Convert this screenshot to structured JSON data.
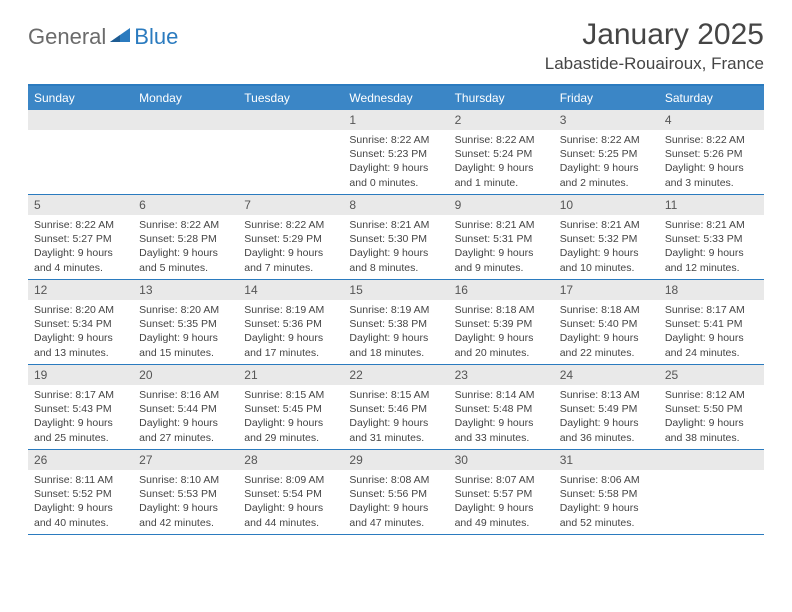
{
  "logo": {
    "general": "General",
    "blue": "Blue"
  },
  "title": "January 2025",
  "location": "Labastide-Rouairoux, France",
  "colors": {
    "header_bar": "#3b86c6",
    "border": "#2b7bbf",
    "daynum_bg": "#e9e9e9",
    "text": "#444444",
    "title_text": "#454545"
  },
  "weekdays": [
    "Sunday",
    "Monday",
    "Tuesday",
    "Wednesday",
    "Thursday",
    "Friday",
    "Saturday"
  ],
  "weeks": [
    [
      null,
      null,
      null,
      {
        "n": "1",
        "sr": "8:22 AM",
        "ss": "5:23 PM",
        "dl": "9 hours",
        "dl2": "and 0 minutes."
      },
      {
        "n": "2",
        "sr": "8:22 AM",
        "ss": "5:24 PM",
        "dl": "9 hours",
        "dl2": "and 1 minute."
      },
      {
        "n": "3",
        "sr": "8:22 AM",
        "ss": "5:25 PM",
        "dl": "9 hours",
        "dl2": "and 2 minutes."
      },
      {
        "n": "4",
        "sr": "8:22 AM",
        "ss": "5:26 PM",
        "dl": "9 hours",
        "dl2": "and 3 minutes."
      }
    ],
    [
      {
        "n": "5",
        "sr": "8:22 AM",
        "ss": "5:27 PM",
        "dl": "9 hours",
        "dl2": "and 4 minutes."
      },
      {
        "n": "6",
        "sr": "8:22 AM",
        "ss": "5:28 PM",
        "dl": "9 hours",
        "dl2": "and 5 minutes."
      },
      {
        "n": "7",
        "sr": "8:22 AM",
        "ss": "5:29 PM",
        "dl": "9 hours",
        "dl2": "and 7 minutes."
      },
      {
        "n": "8",
        "sr": "8:21 AM",
        "ss": "5:30 PM",
        "dl": "9 hours",
        "dl2": "and 8 minutes."
      },
      {
        "n": "9",
        "sr": "8:21 AM",
        "ss": "5:31 PM",
        "dl": "9 hours",
        "dl2": "and 9 minutes."
      },
      {
        "n": "10",
        "sr": "8:21 AM",
        "ss": "5:32 PM",
        "dl": "9 hours",
        "dl2": "and 10 minutes."
      },
      {
        "n": "11",
        "sr": "8:21 AM",
        "ss": "5:33 PM",
        "dl": "9 hours",
        "dl2": "and 12 minutes."
      }
    ],
    [
      {
        "n": "12",
        "sr": "8:20 AM",
        "ss": "5:34 PM",
        "dl": "9 hours",
        "dl2": "and 13 minutes."
      },
      {
        "n": "13",
        "sr": "8:20 AM",
        "ss": "5:35 PM",
        "dl": "9 hours",
        "dl2": "and 15 minutes."
      },
      {
        "n": "14",
        "sr": "8:19 AM",
        "ss": "5:36 PM",
        "dl": "9 hours",
        "dl2": "and 17 minutes."
      },
      {
        "n": "15",
        "sr": "8:19 AM",
        "ss": "5:38 PM",
        "dl": "9 hours",
        "dl2": "and 18 minutes."
      },
      {
        "n": "16",
        "sr": "8:18 AM",
        "ss": "5:39 PM",
        "dl": "9 hours",
        "dl2": "and 20 minutes."
      },
      {
        "n": "17",
        "sr": "8:18 AM",
        "ss": "5:40 PM",
        "dl": "9 hours",
        "dl2": "and 22 minutes."
      },
      {
        "n": "18",
        "sr": "8:17 AM",
        "ss": "5:41 PM",
        "dl": "9 hours",
        "dl2": "and 24 minutes."
      }
    ],
    [
      {
        "n": "19",
        "sr": "8:17 AM",
        "ss": "5:43 PM",
        "dl": "9 hours",
        "dl2": "and 25 minutes."
      },
      {
        "n": "20",
        "sr": "8:16 AM",
        "ss": "5:44 PM",
        "dl": "9 hours",
        "dl2": "and 27 minutes."
      },
      {
        "n": "21",
        "sr": "8:15 AM",
        "ss": "5:45 PM",
        "dl": "9 hours",
        "dl2": "and 29 minutes."
      },
      {
        "n": "22",
        "sr": "8:15 AM",
        "ss": "5:46 PM",
        "dl": "9 hours",
        "dl2": "and 31 minutes."
      },
      {
        "n": "23",
        "sr": "8:14 AM",
        "ss": "5:48 PM",
        "dl": "9 hours",
        "dl2": "and 33 minutes."
      },
      {
        "n": "24",
        "sr": "8:13 AM",
        "ss": "5:49 PM",
        "dl": "9 hours",
        "dl2": "and 36 minutes."
      },
      {
        "n": "25",
        "sr": "8:12 AM",
        "ss": "5:50 PM",
        "dl": "9 hours",
        "dl2": "and 38 minutes."
      }
    ],
    [
      {
        "n": "26",
        "sr": "8:11 AM",
        "ss": "5:52 PM",
        "dl": "9 hours",
        "dl2": "and 40 minutes."
      },
      {
        "n": "27",
        "sr": "8:10 AM",
        "ss": "5:53 PM",
        "dl": "9 hours",
        "dl2": "and 42 minutes."
      },
      {
        "n": "28",
        "sr": "8:09 AM",
        "ss": "5:54 PM",
        "dl": "9 hours",
        "dl2": "and 44 minutes."
      },
      {
        "n": "29",
        "sr": "8:08 AM",
        "ss": "5:56 PM",
        "dl": "9 hours",
        "dl2": "and 47 minutes."
      },
      {
        "n": "30",
        "sr": "8:07 AM",
        "ss": "5:57 PM",
        "dl": "9 hours",
        "dl2": "and 49 minutes."
      },
      {
        "n": "31",
        "sr": "8:06 AM",
        "ss": "5:58 PM",
        "dl": "9 hours",
        "dl2": "and 52 minutes."
      },
      null
    ]
  ],
  "labels": {
    "sunrise": "Sunrise:",
    "sunset": "Sunset:",
    "daylight": "Daylight:"
  }
}
